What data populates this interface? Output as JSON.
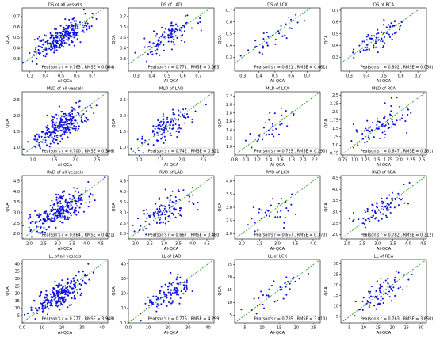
{
  "figure": {
    "rows": 4,
    "cols": 4,
    "xlabel": "AI-QCA",
    "ylabel": "QCA"
  },
  "colors": {
    "points": "#1010e0",
    "identity_line": "#2ca02c",
    "axes": "#000000"
  },
  "chart_data": [
    {
      "type": "scatter",
      "title": "DS of all vessels",
      "xlabel": "AI-QCA",
      "ylabel": "QCA",
      "xlim": [
        0.25,
        0.8
      ],
      "ylim": [
        0.18,
        0.78
      ],
      "xticks": [
        0.3,
        0.4,
        0.5,
        0.6,
        0.7
      ],
      "yticks": [
        0.3,
        0.4,
        0.5,
        0.6,
        0.7
      ],
      "annotation": "Pearson's r = 0.765 , RMSE = 0.064)",
      "n": 260,
      "r": 0.765,
      "rmse": 0.064
    },
    {
      "type": "scatter",
      "title": "DS of LAD",
      "xlabel": "AI-QCA",
      "ylabel": "QCA",
      "xlim": [
        0.25,
        0.8
      ],
      "ylim": [
        0.18,
        0.78
      ],
      "xticks": [
        0.3,
        0.4,
        0.5,
        0.6,
        0.7
      ],
      "yticks": [
        0.3,
        0.4,
        0.5,
        0.6,
        0.7
      ],
      "annotation": "Pearson's r = 0.771 , RMSE = 0.063)",
      "n": 110,
      "r": 0.771,
      "rmse": 0.063
    },
    {
      "type": "scatter",
      "title": "DS of LCX",
      "xlabel": "AI-QCA",
      "ylabel": "QCA",
      "xlim": [
        0.25,
        0.78
      ],
      "ylim": [
        0.18,
        0.72
      ],
      "xticks": [
        0.3,
        0.4,
        0.5,
        0.6,
        0.7
      ],
      "yticks": [
        0.3,
        0.4,
        0.5,
        0.6,
        0.7
      ],
      "annotation": "Pearson's r = 0.821 , RMSE = 0.061)",
      "n": 35,
      "r": 0.821,
      "rmse": 0.061
    },
    {
      "type": "scatter",
      "title": "DS of RCA",
      "xlabel": "AI-QCA",
      "ylabel": "QCA",
      "xlim": [
        0.25,
        0.75
      ],
      "ylim": [
        0.18,
        0.72
      ],
      "xticks": [
        0.3,
        0.4,
        0.5,
        0.6,
        0.7
      ],
      "yticks": [
        0.3,
        0.4,
        0.5,
        0.6,
        0.7
      ],
      "annotation": "Pearson's r = 0.802 , RMSE = 0.058)",
      "n": 80,
      "r": 0.802,
      "rmse": 0.058
    },
    {
      "type": "scatter",
      "title": "MLD of all vessels",
      "xlabel": "AI-QCA",
      "ylabel": "QCA",
      "xlim": [
        0.75,
        2.75
      ],
      "ylim": [
        0.75,
        2.75
      ],
      "xticks": [
        1.0,
        1.5,
        2.0,
        2.5
      ],
      "yticks": [
        1.0,
        1.5,
        2.0,
        2.5
      ],
      "annotation": "Pearson's r = 0.700 , RMSE = 0.306)",
      "n": 260,
      "r": 0.7,
      "rmse": 0.306
    },
    {
      "type": "scatter",
      "title": "MLD of LAD",
      "xlabel": "AI-QCA",
      "ylabel": "QCA",
      "xlim": [
        0.75,
        2.75
      ],
      "ylim": [
        0.75,
        2.75
      ],
      "xticks": [
        1.0,
        1.5,
        2.0,
        2.5
      ],
      "yticks": [
        1.0,
        1.5,
        2.0,
        2.5
      ],
      "annotation": "Pearson's r = 0.742 , RMSE = 0.321)",
      "n": 110,
      "r": 0.742,
      "rmse": 0.321
    },
    {
      "type": "scatter",
      "title": "MLD of LCX",
      "xlabel": "AI-QCA",
      "ylabel": "QCA",
      "xlim": [
        0.8,
        2.3
      ],
      "ylim": [
        0.8,
        2.3
      ],
      "xticks": [
        0.8,
        1.0,
        1.2,
        1.4,
        1.6,
        1.8,
        2.0,
        2.2
      ],
      "yticks": [
        1.0,
        1.2,
        1.4,
        1.6,
        1.8,
        2.0,
        2.2
      ],
      "annotation": "Pearson's r = 0.725 , RMSE = 0.290)",
      "n": 35,
      "r": 0.725,
      "rmse": 0.29
    },
    {
      "type": "scatter",
      "title": "MLD of RCA",
      "xlabel": "AI-QCA",
      "ylabel": "QCA",
      "xlim": [
        0.7,
        2.6
      ],
      "ylim": [
        0.7,
        2.6
      ],
      "xticks": [
        0.75,
        1.0,
        1.25,
        1.5,
        1.75,
        2.0,
        2.25,
        2.5
      ],
      "yticks": [
        0.75,
        1.0,
        1.25,
        1.5,
        1.75,
        2.0,
        2.25,
        2.5
      ],
      "annotation": "Pearson's r = 0.647 , RMSE = 0.281)",
      "n": 80,
      "r": 0.647,
      "rmse": 0.281
    },
    {
      "type": "scatter",
      "title": "RVD of all vessels",
      "xlabel": "AI-QCA",
      "ylabel": "QCA",
      "xlim": [
        1.75,
        4.75
      ],
      "ylim": [
        1.75,
        4.75
      ],
      "xticks": [
        2.0,
        2.5,
        3.0,
        3.5,
        4.0,
        4.5
      ],
      "yticks": [
        2.0,
        2.5,
        3.0,
        3.5,
        4.0,
        4.5
      ],
      "annotation": "Pearson's r = 0.664 , RMSE = 0.421)",
      "n": 260,
      "r": 0.664,
      "rmse": 0.421
    },
    {
      "type": "scatter",
      "title": "RVD of LAD",
      "xlabel": "AI-QCA",
      "ylabel": "QCA",
      "xlim": [
        1.75,
        4.75
      ],
      "ylim": [
        1.75,
        4.75
      ],
      "xticks": [
        2.0,
        2.5,
        3.0,
        3.5,
        4.0,
        4.5
      ],
      "yticks": [
        2.0,
        2.5,
        3.0,
        3.5,
        4.0,
        4.5
      ],
      "annotation": "Pearson's r = 0.667 , RMSE = 0.480)",
      "n": 110,
      "r": 0.667,
      "rmse": 0.48
    },
    {
      "type": "scatter",
      "title": "RVD of LCX",
      "xlabel": "AI-QCA",
      "ylabel": "QCA",
      "xlim": [
        1.8,
        4.2
      ],
      "ylim": [
        1.8,
        4.2
      ],
      "xticks": [
        2.0,
        2.5,
        3.0,
        3.5,
        4.0
      ],
      "yticks": [
        2.0,
        2.5,
        3.0,
        3.5,
        4.0
      ],
      "annotation": "Pearson's r = 0.667 , RMSE = 0.370)",
      "n": 35,
      "r": 0.667,
      "rmse": 0.37
    },
    {
      "type": "scatter",
      "title": "RVD of RCA",
      "xlabel": "AI-QCA",
      "ylabel": "QCA",
      "xlim": [
        1.8,
        4.6
      ],
      "ylim": [
        1.8,
        4.6
      ],
      "xticks": [
        2.0,
        2.5,
        3.0,
        3.5,
        4.0,
        4.5
      ],
      "yticks": [
        2.0,
        2.5,
        3.0,
        3.5,
        4.0,
        4.5
      ],
      "annotation": "Pearson's r = 0.782 , RMSE = 0.312)",
      "n": 80,
      "r": 0.782,
      "rmse": 0.312
    },
    {
      "type": "scatter",
      "title": "LL of all vessels",
      "xlabel": "AI-QCA",
      "ylabel": "QCA",
      "xlim": [
        0,
        43
      ],
      "ylim": [
        0,
        43
      ],
      "xticks": [
        0,
        10,
        20,
        30,
        40
      ],
      "yticks": [
        5,
        10,
        15,
        20,
        25,
        30,
        35,
        40
      ],
      "annotation": "Pearson's r = 0.777 , RMSE = 3.948)",
      "n": 260,
      "r": 0.777,
      "rmse": 3.948
    },
    {
      "type": "scatter",
      "title": "LL of LAD",
      "xlabel": "AI-QCA",
      "ylabel": "QCA",
      "xlim": [
        0,
        43
      ],
      "ylim": [
        0,
        43
      ],
      "xticks": [
        0,
        10,
        20,
        30,
        40
      ],
      "yticks": [
        0,
        10,
        20,
        30,
        40
      ],
      "annotation": "Pearson's r = 0.776 , RMSE = 4.299)",
      "n": 110,
      "r": 0.776,
      "rmse": 4.299
    },
    {
      "type": "scatter",
      "title": "LL of LCX",
      "xlabel": "AI-QCA",
      "ylabel": "QCA",
      "xlim": [
        2,
        27
      ],
      "ylim": [
        2,
        27
      ],
      "xticks": [
        5,
        10,
        15,
        20,
        25
      ],
      "yticks": [
        5,
        10,
        15,
        20,
        25
      ],
      "annotation": "Pearson's r = 0.785 , RMSE = 3.010)",
      "n": 35,
      "r": 0.785,
      "rmse": 3.01
    },
    {
      "type": "scatter",
      "title": "LL of RCA",
      "xlabel": "AI-QCA",
      "ylabel": "QCA",
      "xlim": [
        2,
        32
      ],
      "ylim": [
        2,
        32
      ],
      "xticks": [
        5,
        10,
        15,
        20,
        25,
        30
      ],
      "yticks": [
        5,
        10,
        15,
        20,
        25,
        30
      ],
      "annotation": "Pearson's r = 0.763 , RMSE = 3.650)",
      "n": 80,
      "r": 0.763,
      "rmse": 3.65
    }
  ]
}
